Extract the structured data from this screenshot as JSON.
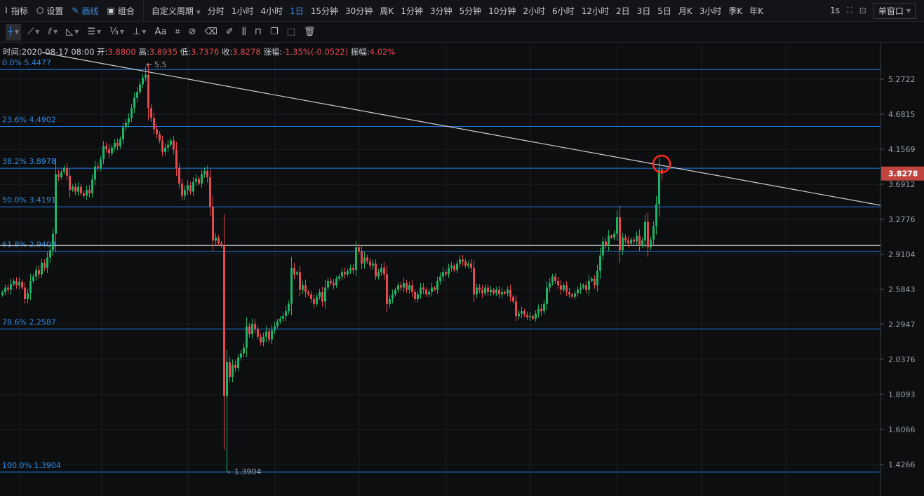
{
  "topbar": {
    "left_buttons": [
      {
        "label": "指标",
        "icon": "chart-line-icon"
      },
      {
        "label": "设置",
        "icon": "hexagon-gear-icon"
      },
      {
        "label": "画线",
        "icon": "pencil-icon",
        "active": true
      },
      {
        "label": "组合",
        "icon": "layout-icon"
      }
    ],
    "custom_period": "自定义周期",
    "periods": [
      "分时",
      "1小时",
      "4小时",
      "1日",
      "15分钟",
      "30分钟",
      "周K",
      "1分钟",
      "3分钟",
      "5分钟",
      "10分钟",
      "2小时",
      "6小时",
      "12小时",
      "2日",
      "3日",
      "5日",
      "月K",
      "3小时",
      "季K",
      "年K"
    ],
    "active_period": "1日",
    "refresh": "1s",
    "window_mode": "单窗口"
  },
  "drawing_tools": [
    "crosshair-icon",
    "trendline-icon",
    "parallel-channel-icon",
    "angle-icon",
    "horizontal-lines-icon",
    "fibonacci-icon",
    "measure-icon",
    "text-icon",
    "ruler-icon",
    "link-icon",
    "eraser-icon",
    "pen-icon",
    "candles-icon",
    "lock-icon",
    "copy-icon",
    "snapshot-icon",
    "trash-icon"
  ],
  "text_tool_label": "Aa",
  "info": {
    "time_label": "时间:",
    "time": "2020-08-17 08:00",
    "open_label": "开:",
    "open": "3.8800",
    "high_label": "高:",
    "high": "3.8935",
    "low_label": "低:",
    "low": "3.7376",
    "close_label": "收:",
    "close": "3.8278",
    "change_label": "涨幅:",
    "change": "-1.35%(-0.0522)",
    "amplitude_label": "振幅:",
    "amplitude": "4.02%"
  },
  "colors": {
    "up": "#1db364",
    "down": "#e5484d",
    "fib": "#1e7ce6",
    "accent": "#3a8ee6",
    "last_price_bg": "#c0453f"
  },
  "chart_data": {
    "type": "candlestick",
    "y_scale": "log",
    "y_ticks": [
      5.2722,
      4.6815,
      4.1569,
      3.6912,
      3.2776,
      2.9104,
      2.5843,
      2.2947,
      2.0376,
      1.8093,
      1.6066,
      1.4266
    ],
    "last_price": "3.8278",
    "fib_levels": [
      {
        "label": "0.0% 5.4477",
        "price": 5.4477
      },
      {
        "label": "23.6% 4.4902",
        "price": 4.4902
      },
      {
        "label": "38.2% 3.8978",
        "price": 3.8978
      },
      {
        "label": "50.0% 3.4191",
        "price": 3.4191
      },
      {
        "label": "61.8% 2.9403",
        "price": 2.9403
      },
      {
        "label": "78.6% 2.2587",
        "price": 2.2587
      },
      {
        "label": "100.0% 1.3904",
        "price": 1.3904
      }
    ],
    "horizontal_line": 3.0,
    "high_marker": "5.5",
    "low_marker": "1.3904",
    "closes": [
      2.56,
      2.6,
      2.58,
      2.63,
      2.66,
      2.62,
      2.65,
      2.6,
      2.5,
      2.55,
      2.66,
      2.7,
      2.76,
      2.72,
      2.83,
      2.78,
      2.88,
      2.95,
      3.12,
      3.82,
      3.78,
      3.85,
      3.9,
      3.8,
      3.62,
      3.66,
      3.6,
      3.66,
      3.58,
      3.55,
      3.62,
      3.58,
      3.75,
      3.92,
      3.9,
      4.02,
      4.2,
      4.16,
      4.1,
      4.18,
      4.25,
      4.2,
      4.3,
      4.48,
      4.55,
      4.62,
      4.78,
      4.95,
      5.05,
      5.18,
      5.3,
      5.35,
      4.78,
      4.62,
      4.45,
      4.38,
      4.28,
      4.12,
      4.18,
      4.22,
      4.28,
      4.15,
      3.9,
      3.7,
      3.55,
      3.62,
      3.68,
      3.6,
      3.72,
      3.76,
      3.7,
      3.82,
      3.86,
      3.78,
      3.42,
      3.05,
      3.08,
      3.02,
      3.0,
      1.8,
      2.02,
      1.92,
      2.0,
      1.98,
      2.05,
      2.08,
      2.12,
      2.28,
      2.22,
      2.3,
      2.26,
      2.2,
      2.16,
      2.2,
      2.24,
      2.18,
      2.25,
      2.28,
      2.32,
      2.34,
      2.36,
      2.4,
      2.46,
      2.78,
      2.72,
      2.74,
      2.58,
      2.62,
      2.56,
      2.54,
      2.5,
      2.46,
      2.52,
      2.56,
      2.48,
      2.6,
      2.66,
      2.64,
      2.62,
      2.68,
      2.7,
      2.74,
      2.72,
      2.75,
      2.78,
      2.76,
      2.98,
      2.94,
      2.82,
      2.88,
      2.84,
      2.8,
      2.82,
      2.7,
      2.74,
      2.78,
      2.72,
      2.46,
      2.5,
      2.54,
      2.58,
      2.62,
      2.6,
      2.64,
      2.58,
      2.62,
      2.56,
      2.5,
      2.54,
      2.6,
      2.58,
      2.54,
      2.56,
      2.6,
      2.58,
      2.66,
      2.7,
      2.74,
      2.72,
      2.78,
      2.8,
      2.76,
      2.82,
      2.86,
      2.84,
      2.8,
      2.82,
      2.78,
      2.54,
      2.6,
      2.58,
      2.55,
      2.6,
      2.56,
      2.58,
      2.55,
      2.58,
      2.54,
      2.56,
      2.55,
      2.58,
      2.52,
      2.48,
      2.36,
      2.38,
      2.4,
      2.37,
      2.35,
      2.36,
      2.34,
      2.38,
      2.42,
      2.4,
      2.46,
      2.6,
      2.64,
      2.7,
      2.66,
      2.62,
      2.58,
      2.62,
      2.56,
      2.54,
      2.52,
      2.55,
      2.58,
      2.6,
      2.62,
      2.58,
      2.66,
      2.68,
      2.62,
      2.75,
      2.9,
      3.04,
      3.0,
      3.1,
      3.08,
      3.12,
      3.3,
      2.95,
      3.08,
      3.05,
      3.02,
      3.06,
      3.04,
      3.1,
      3.0,
      3.05,
      3.25,
      2.98,
      3.06,
      3.2,
      3.45,
      3.88,
      3.8278
    ],
    "extremes": [
      {
        "index": 51,
        "high": 5.5
      },
      {
        "index": 80,
        "low": 1.3904
      },
      {
        "index": 235,
        "open": 3.88,
        "high": 3.8935,
        "low": 3.7376
      }
    ]
  }
}
